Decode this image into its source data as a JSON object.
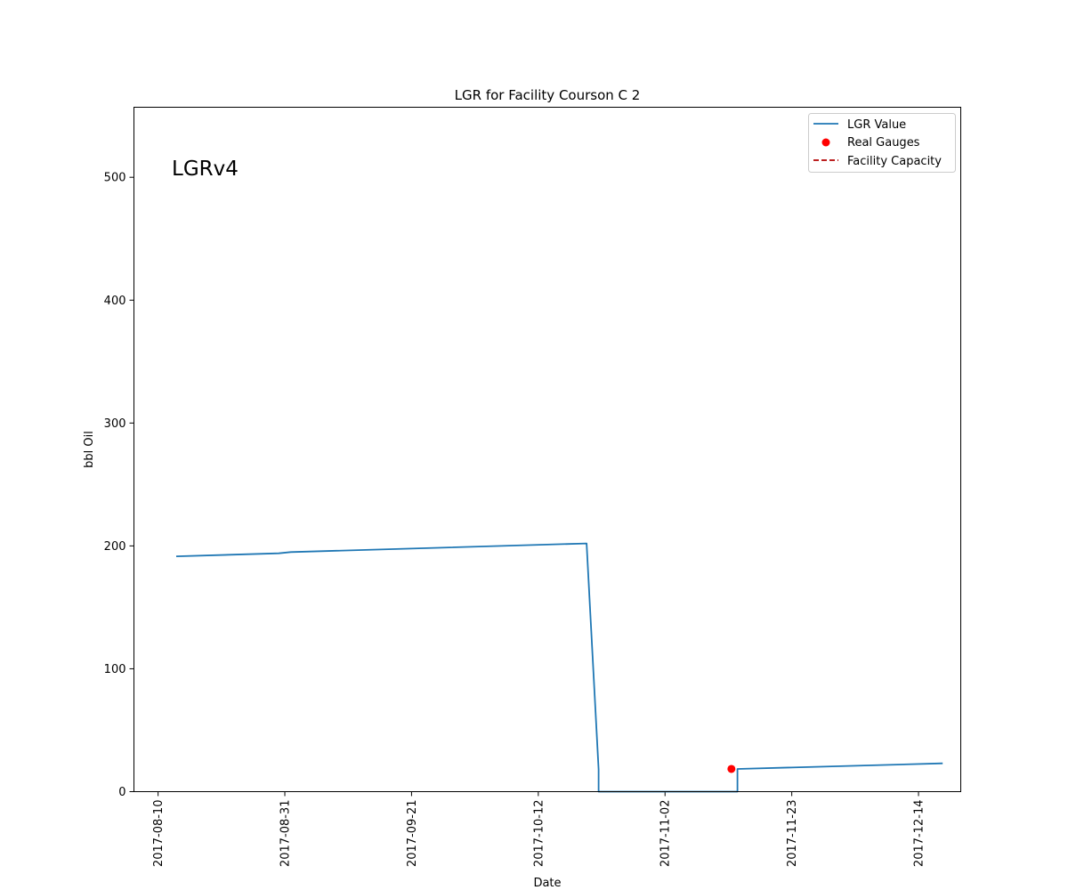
{
  "chart_data": {
    "type": "line",
    "title": "LGR for Facility Courson C 2",
    "xlabel": "Date",
    "ylabel": "bbl Oil",
    "annotation": "LGRv4",
    "xlim": [
      "2017-08-06",
      "2017-12-21"
    ],
    "ylim": [
      0,
      557
    ],
    "x_ticks": [
      "2017-08-10",
      "2017-08-31",
      "2017-09-21",
      "2017-10-12",
      "2017-11-02",
      "2017-11-23",
      "2017-12-14"
    ],
    "y_ticks": [
      0,
      100,
      200,
      300,
      400,
      500
    ],
    "grid": false,
    "legend_position": "top-right",
    "legend": [
      "LGR Value",
      "Real Gauges",
      "Facility Capacity"
    ],
    "series": [
      {
        "name": "LGR Value",
        "kind": "line",
        "color": "#1f77b4",
        "points": [
          [
            "2017-08-13",
            191.5
          ],
          [
            "2017-08-30",
            194.0
          ],
          [
            "2017-09-01",
            195.0
          ],
          [
            "2017-10-20",
            202.0
          ],
          [
            "2017-10-22",
            18.0
          ],
          [
            "2017-10-22",
            0
          ],
          [
            "2017-11-14",
            0
          ],
          [
            "2017-11-14",
            18.5
          ],
          [
            "2017-12-18",
            23.0
          ]
        ]
      },
      {
        "name": "Real Gauges",
        "kind": "scatter",
        "color": "#ff0000",
        "points": [
          [
            "2017-11-13",
            18.5
          ]
        ]
      },
      {
        "name": "Facility Capacity",
        "kind": "dashed-line",
        "color": "#b30000",
        "points": []
      }
    ]
  }
}
